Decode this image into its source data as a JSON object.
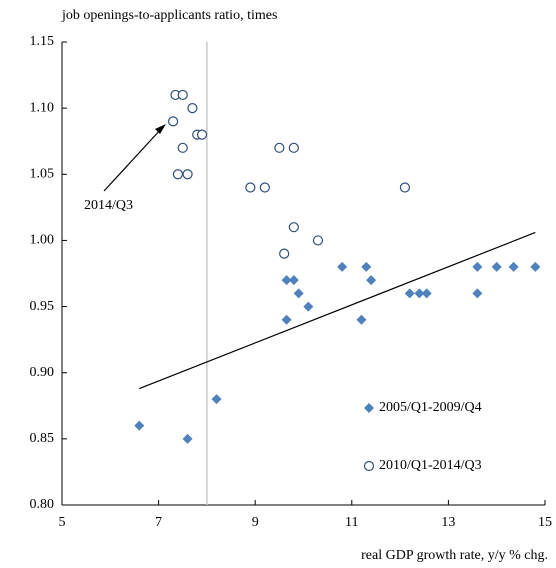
{
  "chart_data": {
    "type": "scatter",
    "y_label": "job openings-to-applicants ratio, times",
    "x_label": "real GDP growth rate, y/y % chg.",
    "annotation": {
      "text": "2014/Q3"
    },
    "xlim": [
      5,
      15
    ],
    "xticks": [
      5,
      7,
      9,
      11,
      13,
      15
    ],
    "ylim": [
      0.8,
      1.15
    ],
    "yticks": [
      {
        "value": 0.8,
        "label": "0.80"
      },
      0.85,
      {
        "value": 0.9,
        "label": "0.90"
      },
      0.95,
      {
        "value": 1.0,
        "label": "1.00"
      },
      1.05,
      {
        "value": 1.1,
        "label": "1.10"
      },
      1.15
    ],
    "reference_x": 8,
    "trendline": {
      "x": [
        6.6,
        14.8
      ],
      "values": [
        0.888,
        1.006
      ]
    },
    "series": [
      {
        "name": "2005/Q1-2009/Q4",
        "marker": "diamond",
        "color": "#4f81bd",
        "x": [
          6.6,
          7.6,
          8.2,
          9.65,
          9.65,
          9.8,
          9.9,
          10.1,
          10.8,
          11.2,
          11.3,
          11.4,
          12.2,
          12.4,
          12.55,
          13.6,
          13.6,
          14.0,
          14.35,
          14.8
        ],
        "values": [
          0.86,
          0.85,
          0.88,
          0.94,
          0.97,
          0.97,
          0.96,
          0.95,
          0.98,
          0.94,
          0.98,
          0.97,
          0.96,
          0.96,
          0.96,
          0.98,
          0.96,
          0.98,
          0.98,
          0.98
        ]
      },
      {
        "name": "2010/Q1-2014/Q3",
        "marker": "circle",
        "color": "#2e4f7a",
        "x": [
          7.3,
          7.35,
          7.5,
          7.7,
          7.8,
          7.9,
          7.5,
          7.4,
          7.6,
          8.9,
          9.2,
          9.5,
          9.8,
          9.8,
          9.6,
          10.3,
          12.1
        ],
        "values": [
          1.09,
          1.11,
          1.11,
          1.1,
          1.08,
          1.08,
          1.07,
          1.05,
          1.05,
          1.04,
          1.04,
          1.07,
          1.07,
          1.01,
          0.99,
          1.0,
          1.04
        ]
      }
    ]
  }
}
